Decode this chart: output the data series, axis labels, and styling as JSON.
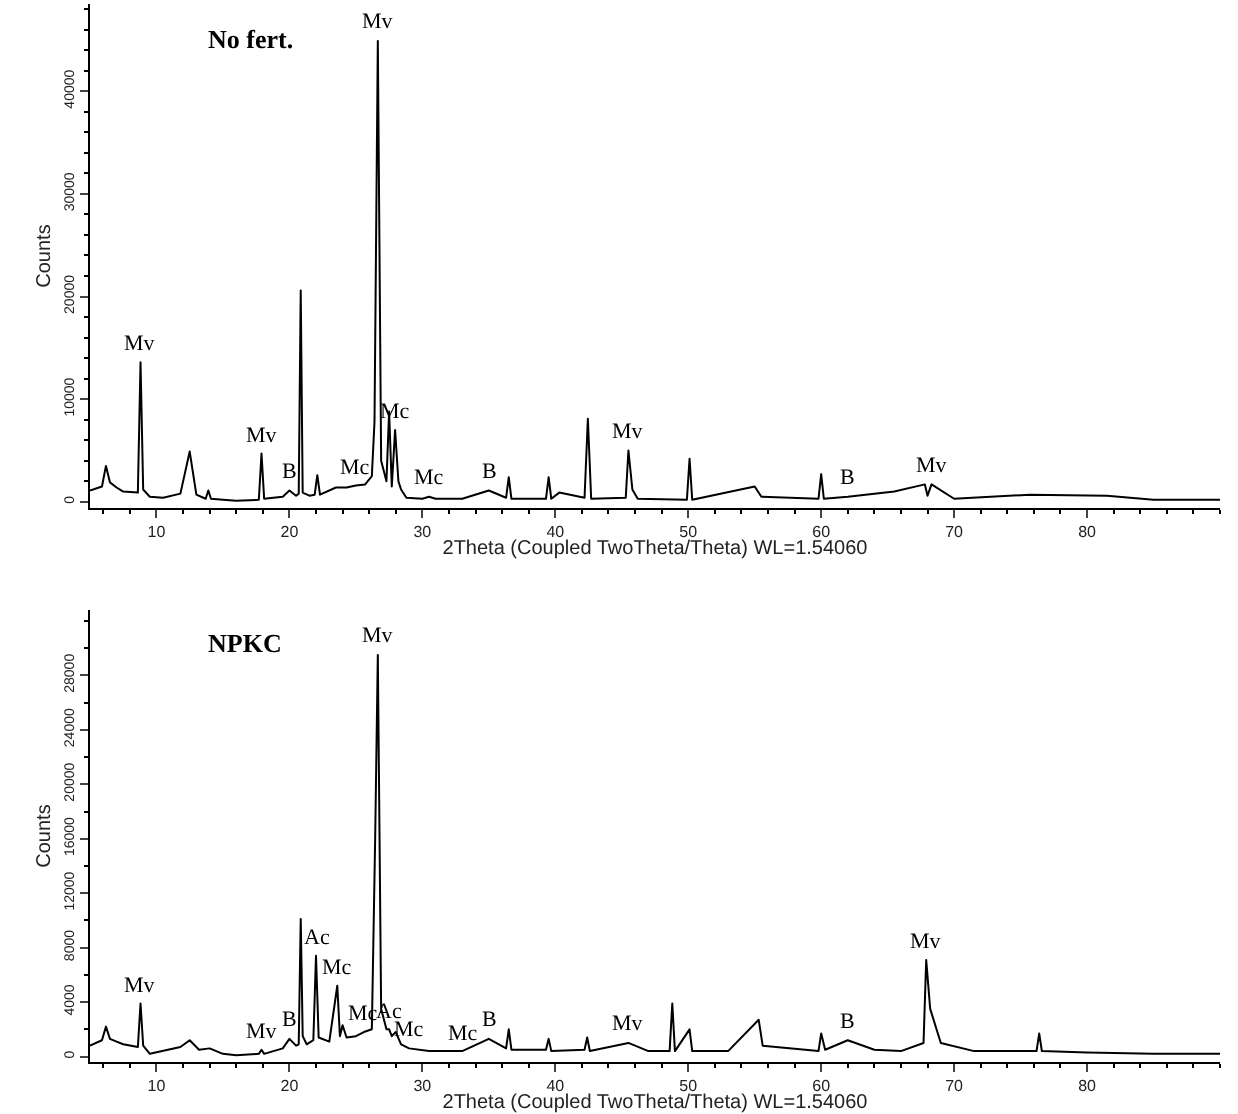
{
  "chart_data": [
    {
      "type": "line",
      "title": "No fert.",
      "xlabel": "2Theta (Coupled TwoTheta/Theta) WL=1.54060",
      "ylabel": "Counts",
      "x": [
        5,
        5.9,
        6.2,
        6.5,
        7,
        7.5,
        8.6,
        8.8,
        9.0,
        9.5,
        10.5,
        11.8,
        12.5,
        13.0,
        13.7,
        13.9,
        14.1,
        15,
        16,
        17.7,
        17.9,
        18.1,
        19.5,
        20.0,
        20.5,
        20.7,
        20.85,
        21.0,
        21.5,
        21.9,
        22.1,
        22.3,
        23.5,
        24.3,
        25.0,
        25.7,
        26.2,
        26.4,
        26.65,
        26.9,
        27.3,
        27.5,
        27.7,
        27.95,
        28.2,
        28.4,
        28.8,
        30,
        30.5,
        31,
        33,
        35,
        36.3,
        36.5,
        36.7,
        39.3,
        39.5,
        39.7,
        40.3,
        42.2,
        42.45,
        42.7,
        45.3,
        45.5,
        45.8,
        46.2,
        49.9,
        50.1,
        50.3,
        55,
        55.5,
        59.8,
        60,
        60.2,
        62,
        65.5,
        67.8,
        68.0,
        68.3,
        70,
        75.7,
        81.5,
        85,
        90
      ],
      "series": [
        {
          "color": "#000000",
          "values": [
            1100,
            1500,
            3500,
            1900,
            1400,
            1000,
            900,
            13600,
            1200,
            500,
            400,
            800,
            4900,
            700,
            300,
            1100,
            300,
            200,
            100,
            200,
            4700,
            300,
            500,
            1100,
            600,
            800,
            20600,
            900,
            600,
            700,
            2600,
            700,
            1400,
            1400,
            1600,
            1700,
            2500,
            7800,
            44900,
            4000,
            2000,
            8800,
            1500,
            7000,
            2000,
            1200,
            400,
            300,
            500,
            300,
            300,
            1100,
            400,
            2400,
            300,
            300,
            2400,
            300,
            900,
            400,
            8100,
            300,
            400,
            5000,
            1200,
            300,
            200,
            4200,
            200,
            1500,
            500,
            300,
            2700,
            300,
            500,
            1000,
            1700,
            600,
            1700,
            300,
            700,
            600,
            200,
            200
          ]
        }
      ],
      "xlim": [
        5,
        90
      ],
      "xticks": [
        10,
        20,
        30,
        40,
        50,
        60,
        70,
        80
      ],
      "ylim": [
        -600,
        48500
      ],
      "yticks": [
        0,
        10000,
        20000,
        30000,
        40000
      ],
      "grid": false,
      "marker": "none",
      "line_style": "solid",
      "annotations": [
        {
          "text": "Mv",
          "x": 8.8,
          "y": 13600
        },
        {
          "text": "Mv",
          "x": 17.9,
          "y": 4700
        },
        {
          "text": "B",
          "x": 20.0,
          "y": 1100
        },
        {
          "text": "Mc",
          "x": 25.0,
          "y": 1600
        },
        {
          "text": "Mv",
          "x": 26.65,
          "y": 44900
        },
        {
          "text": "Mc",
          "x": 27.95,
          "y": 7000
        },
        {
          "text": "Mc",
          "x": 30.5,
          "y": 500
        },
        {
          "text": "B",
          "x": 35,
          "y": 1100
        },
        {
          "text": "Mv",
          "x": 45.5,
          "y": 5000
        },
        {
          "text": "B",
          "x": 62,
          "y": 500
        },
        {
          "text": "Mv",
          "x": 68.3,
          "y": 1700
        }
      ]
    },
    {
      "type": "line",
      "title": "NPKC",
      "xlabel": "2Theta (Coupled TwoTheta/Theta) WL=1.54060",
      "ylabel": "Counts",
      "x": [
        5,
        5.9,
        6.2,
        6.5,
        7,
        7.5,
        8.6,
        8.8,
        9.0,
        9.5,
        11.8,
        12.5,
        13.2,
        14,
        15,
        16,
        17.7,
        17.9,
        18.1,
        19.5,
        20.0,
        20.5,
        20.7,
        20.85,
        21.0,
        21.3,
        21.8,
        22.0,
        22.2,
        23.0,
        23.6,
        23.8,
        24.0,
        24.3,
        25.0,
        25.6,
        26.2,
        26.45,
        26.65,
        26.9,
        27.3,
        27.5,
        27.7,
        28.0,
        28.4,
        29,
        30.5,
        33,
        35,
        36.3,
        36.5,
        36.7,
        39.3,
        39.5,
        39.7,
        42.2,
        42.4,
        42.6,
        45.5,
        47,
        48.6,
        48.8,
        49.0,
        50.1,
        50.3,
        53,
        55.3,
        55.6,
        59.8,
        60,
        60.3,
        62,
        64,
        66,
        67.7,
        67.9,
        68.2,
        69,
        71.5,
        73.5,
        76.2,
        76.4,
        76.6,
        80,
        85,
        90
      ],
      "series": [
        {
          "color": "#000000",
          "values": [
            800,
            1200,
            2200,
            1300,
            1100,
            900,
            700,
            3900,
            800,
            200,
            700,
            1200,
            500,
            600,
            200,
            100,
            200,
            500,
            200,
            600,
            1300,
            800,
            900,
            10100,
            1500,
            900,
            1200,
            7400,
            1400,
            1100,
            5200,
            1500,
            2300,
            1400,
            1500,
            1800,
            2000,
            16000,
            29500,
            3500,
            2000,
            2000,
            1500,
            1800,
            900,
            600,
            400,
            400,
            1300,
            600,
            2000,
            500,
            500,
            1300,
            400,
            500,
            1400,
            400,
            1000,
            400,
            400,
            3900,
            400,
            2000,
            400,
            400,
            2700,
            800,
            400,
            1700,
            500,
            1200,
            500,
            400,
            1000,
            7100,
            3500,
            1000,
            400,
            400,
            400,
            1700,
            400,
            300,
            200,
            200
          ]
        }
      ],
      "xlim": [
        5,
        90
      ],
      "xticks": [
        10,
        20,
        30,
        40,
        50,
        60,
        70,
        80
      ],
      "ylim": [
        -400,
        32800
      ],
      "yticks": [
        0,
        4000,
        8000,
        12000,
        16000,
        20000,
        24000,
        28000
      ],
      "grid": false,
      "marker": "none",
      "line_style": "solid",
      "annotations": [
        {
          "text": "Mv",
          "x": 8.8,
          "y": 3900
        },
        {
          "text": "Mv",
          "x": 17.9,
          "y": 500
        },
        {
          "text": "B",
          "x": 20.0,
          "y": 1300
        },
        {
          "text": "Ac",
          "x": 22.0,
          "y": 7400
        },
        {
          "text": "Mc",
          "x": 23.6,
          "y": 5200
        },
        {
          "text": "Mc",
          "x": 25.6,
          "y": 1800
        },
        {
          "text": "Mv",
          "x": 26.65,
          "y": 29500
        },
        {
          "text": "Ac",
          "x": 27.5,
          "y": 2000
        },
        {
          "text": "Mc",
          "x": 29,
          "y": 600
        },
        {
          "text": "Mc",
          "x": 33,
          "y": 400
        },
        {
          "text": "B",
          "x": 35,
          "y": 1300
        },
        {
          "text": "Mv",
          "x": 45.5,
          "y": 1000
        },
        {
          "text": "B",
          "x": 62,
          "y": 1200
        },
        {
          "text": "Mv",
          "x": 67.9,
          "y": 7100
        }
      ]
    }
  ]
}
